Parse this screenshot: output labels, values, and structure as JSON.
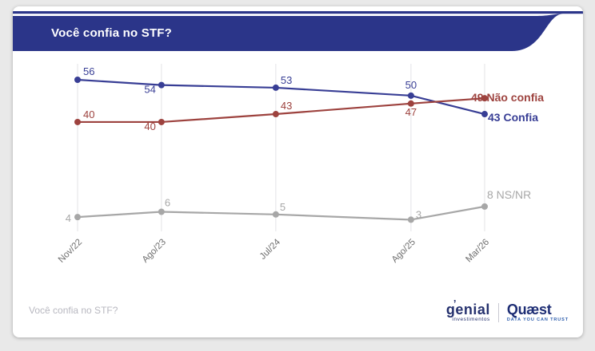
{
  "header": {
    "title": "Você confia no STF?",
    "bar_color": "#2b3589"
  },
  "chart_data": {
    "type": "line",
    "categories": [
      "Nov/22",
      "Ago/23",
      "Jul/24",
      "Ago/25",
      "Mar/26"
    ],
    "series": [
      {
        "name": "Confia",
        "values": [
          56,
          54,
          53,
          50,
          43
        ],
        "color": "#383e95"
      },
      {
        "name": "Não confia",
        "values": [
          40,
          40,
          43,
          47,
          49
        ],
        "color": "#9d423e"
      },
      {
        "name": "NS/NR",
        "values": [
          4,
          6,
          5,
          3,
          8
        ],
        "color": "#a7a7a7"
      }
    ],
    "title": "Você confia no STF?",
    "xlabel": "",
    "ylabel": "",
    "ylim": [
      0,
      60
    ],
    "grid": "vertical",
    "gridline_color": "#e3e3e6",
    "tick_color": "#6f6f6f",
    "legend_position": "end-of-line",
    "x_spacing": "time-proportional"
  },
  "footer": {
    "caption": "Você confia no STF?",
    "logos": {
      "genial": {
        "name": "genial",
        "tagline": "investimentos"
      },
      "quaest": {
        "name": "Quæst",
        "tagline": "DATA YOU CAN TRUST"
      }
    }
  }
}
